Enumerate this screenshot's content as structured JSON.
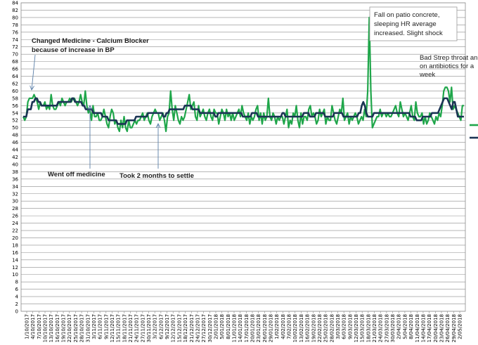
{
  "chart_data": {
    "type": "line",
    "ylim": [
      0,
      84
    ],
    "ytick_step": 2,
    "grid": true,
    "x_tick_labels": [
      "1/10/2017",
      "4/10/2017",
      "7/10/2017",
      "10/10/2017",
      "13/10/2017",
      "16/10/2017",
      "19/10/2017",
      "22/10/2017",
      "25/10/2017",
      "28/10/2017",
      "31/10/2017",
      "3/11/2017",
      "6/11/2017",
      "9/11/2017",
      "12/11/2017",
      "15/11/2017",
      "18/11/2017",
      "21/11/2017",
      "24/11/2017",
      "27/11/2017",
      "30/11/2017",
      "3/12/2017",
      "6/12/2017",
      "9/12/2017",
      "12/12/2017",
      "15/12/2017",
      "18/12/2017",
      "21/12/2017",
      "24/12/2017",
      "27/12/2017",
      "30/12/2017",
      "2/01/2018",
      "5/01/2018",
      "8/01/2018",
      "11/01/2018",
      "14/01/2018",
      "17/01/2018",
      "20/01/2018",
      "23/01/2018",
      "26/01/2018",
      "29/01/2018",
      "1/02/2018",
      "4/02/2018",
      "7/02/2018",
      "10/02/2018",
      "13/02/2018",
      "16/02/2018",
      "19/02/2018",
      "22/02/2018",
      "25/02/2018",
      "28/02/2018",
      "3/03/2018",
      "6/03/2018",
      "9/03/2018",
      "12/03/2018",
      "15/03/2018",
      "18/03/2018",
      "21/03/2018",
      "24/03/2018",
      "27/03/2018",
      "30/03/2018",
      "2/04/2018",
      "5/04/2018",
      "8/04/2018",
      "11/04/2018",
      "14/04/2018",
      "17/04/2018",
      "20/04/2018",
      "23/04/2018",
      "26/04/2018",
      "29/04/2018",
      "2/05/2018"
    ],
    "series": [
      {
        "color": "#1fa64a",
        "values": [
          53,
          52,
          53,
          57,
          58,
          58,
          58,
          59,
          58,
          57,
          55,
          57,
          56,
          56,
          57,
          55,
          56,
          55,
          59,
          56,
          55,
          55,
          56,
          57,
          56,
          58,
          57,
          56,
          57,
          57,
          58,
          57,
          58,
          58,
          57,
          56,
          57,
          59,
          57,
          56,
          60,
          56,
          54,
          55,
          52,
          56,
          53,
          53,
          54,
          52,
          52,
          53,
          55,
          53,
          51,
          50,
          53,
          55,
          54,
          51,
          52,
          50,
          49,
          52,
          50,
          53,
          50,
          49,
          52,
          50,
          50,
          51,
          52,
          51,
          52,
          52,
          53,
          54,
          52,
          53,
          54,
          52,
          51,
          53,
          54,
          55,
          54,
          54,
          52,
          53,
          54,
          52,
          49,
          53,
          54,
          60,
          55,
          52,
          56,
          54,
          52,
          51,
          53,
          52,
          53,
          55,
          57,
          59,
          55,
          56,
          57,
          53,
          52,
          56,
          53,
          54,
          55,
          53,
          52,
          54,
          55,
          53,
          52,
          55,
          54,
          54,
          51,
          53,
          55,
          54,
          52,
          55,
          53,
          54,
          52,
          54,
          52,
          53,
          54,
          55,
          53,
          56,
          54,
          53,
          52,
          54,
          51,
          53,
          52,
          53,
          55,
          56,
          52,
          54,
          51,
          54,
          52,
          53,
          58,
          53,
          52,
          54,
          53,
          51,
          53,
          52,
          53,
          53,
          51,
          53,
          55,
          50,
          52,
          51,
          54,
          53,
          56,
          52,
          50,
          54,
          51,
          53,
          53,
          52,
          55,
          56,
          53,
          54,
          53,
          51,
          52,
          55,
          53,
          54,
          55,
          51,
          53,
          52,
          52,
          56,
          54,
          52,
          51,
          53,
          55,
          54,
          58,
          52,
          53,
          54,
          51,
          53,
          52,
          53,
          54,
          53,
          51,
          52,
          53,
          52,
          55,
          53,
          60,
          80,
          60,
          50,
          51,
          52,
          53,
          53,
          55,
          53,
          54,
          54,
          53,
          54,
          53,
          53,
          54,
          55,
          56,
          54,
          53,
          57,
          55,
          53,
          54,
          53,
          52,
          54,
          56,
          53,
          52,
          57,
          54,
          53,
          53,
          54,
          51,
          53,
          51,
          52,
          54,
          53,
          52,
          51,
          53,
          52,
          54,
          53,
          56,
          60,
          61,
          61,
          60,
          57,
          61,
          55,
          56,
          55,
          54,
          53,
          52,
          56,
          56
        ]
      },
      {
        "color": "#1b3454",
        "values": [
          53,
          53,
          53,
          55,
          55,
          55,
          57,
          57,
          58,
          58,
          57,
          57,
          56,
          56,
          56,
          56,
          56,
          56,
          56,
          56,
          56,
          56,
          56,
          57,
          57,
          57,
          57,
          57,
          57,
          57,
          57,
          57,
          58,
          58,
          57,
          57,
          57,
          57,
          57,
          56,
          56,
          55,
          55,
          55,
          55,
          55,
          54,
          54,
          54,
          54,
          54,
          54,
          53,
          53,
          53,
          53,
          52,
          52,
          52,
          52,
          52,
          52,
          51,
          51,
          51,
          51,
          51,
          51,
          52,
          52,
          52,
          52,
          52,
          52,
          53,
          53,
          53,
          53,
          53,
          53,
          53,
          53,
          54,
          54,
          54,
          54,
          54,
          54,
          54,
          54,
          54,
          54,
          53,
          53,
          54,
          54,
          55,
          55,
          55,
          55,
          55,
          55,
          55,
          55,
          55,
          55,
          56,
          56,
          56,
          56,
          56,
          55,
          55,
          55,
          55,
          55,
          54,
          54,
          54,
          54,
          54,
          54,
          54,
          54,
          54,
          54,
          53,
          53,
          54,
          54,
          54,
          54,
          54,
          54,
          54,
          54,
          54,
          54,
          54,
          54,
          54,
          54,
          54,
          54,
          53,
          53,
          53,
          53,
          53,
          53,
          54,
          54,
          54,
          54,
          53,
          53,
          53,
          53,
          53,
          53,
          53,
          53,
          53,
          53,
          53,
          53,
          53,
          53,
          53,
          53,
          54,
          54,
          53,
          53,
          53,
          53,
          53,
          53,
          53,
          53,
          53,
          53,
          53,
          53,
          54,
          54,
          54,
          54,
          53,
          53,
          53,
          53,
          54,
          54,
          54,
          54,
          54,
          54,
          53,
          53,
          53,
          53,
          53,
          53,
          54,
          54,
          54,
          54,
          54,
          54,
          53,
          53,
          53,
          53,
          53,
          53,
          53,
          53,
          53,
          53,
          54,
          54,
          56,
          57,
          56,
          54,
          53,
          53,
          53,
          53,
          54,
          54,
          54,
          54,
          54,
          54,
          54,
          54,
          54,
          54,
          54,
          54,
          54,
          54,
          54,
          54,
          54,
          54,
          54,
          54,
          54,
          54,
          54,
          54,
          53,
          53,
          53,
          53,
          52,
          52,
          52,
          52,
          53,
          53,
          53,
          53,
          53,
          53,
          54,
          54,
          54,
          54,
          54,
          55,
          56,
          57,
          58,
          58,
          58,
          57,
          56,
          55,
          57,
          57,
          55,
          53,
          53,
          53,
          53,
          53
        ]
      }
    ],
    "legend_marker_colors": [
      "#1fa64a",
      "#1b3454"
    ],
    "annotations": [
      {
        "id": "medicine",
        "text": [
          "Changed Medicine - Calcium Blocker",
          "because of increase in BP"
        ]
      },
      {
        "id": "wentoff",
        "text": [
          "Went off medicine"
        ]
      },
      {
        "id": "settle",
        "text": [
          "Took 2 months to settle"
        ]
      },
      {
        "id": "fall",
        "text": [
          "Fall on patio concrete,",
          "sleeping HR average",
          "increased. Slight shock"
        ]
      },
      {
        "id": "strep",
        "text": [
          "Bad Strep throat an",
          "on antibiotics for a",
          "week"
        ]
      }
    ]
  }
}
